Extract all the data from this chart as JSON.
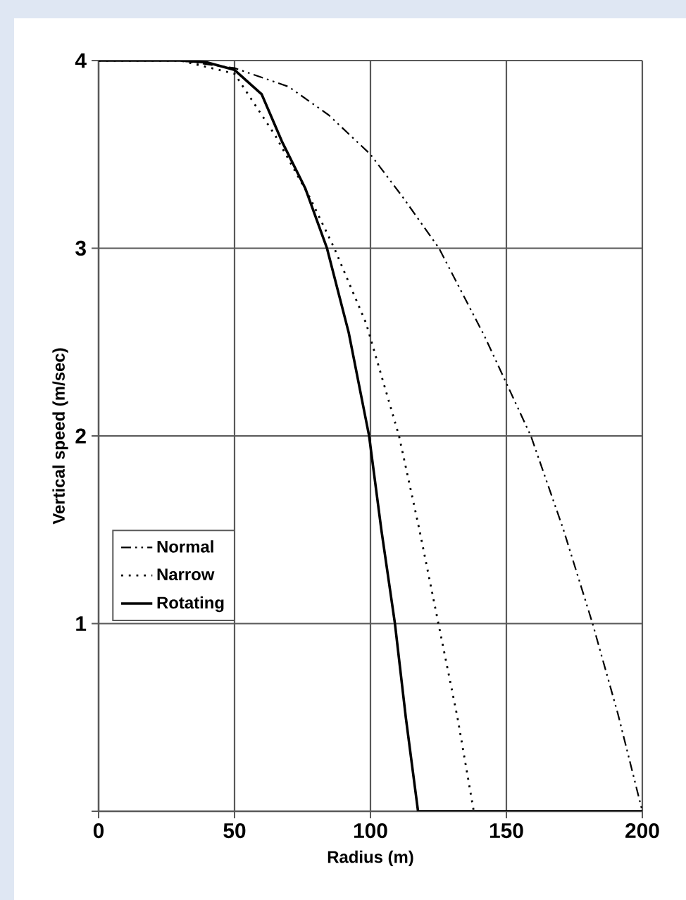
{
  "chart_data": {
    "type": "line",
    "xlabel": "Radius (m)",
    "ylabel": "Vertical speed (m/sec)",
    "xlim": [
      0,
      200
    ],
    "ylim": [
      0,
      4
    ],
    "xticks": [
      0,
      50,
      100,
      150,
      200
    ],
    "yticks": [
      {
        "value": 0,
        "label": null
      },
      1,
      2,
      3,
      4
    ],
    "grid": true,
    "legend": "left",
    "marker": "none",
    "series": [
      {
        "name": "Normal",
        "color": "#000000",
        "line_style": "dashed",
        "x": [
          0,
          30,
          50,
          70,
          84.6,
          100,
          112,
          125.2,
          142,
          159,
          171,
          181.7,
          191,
          200
        ],
        "values": [
          4,
          4,
          3.96,
          3.86,
          3.71,
          3.5,
          3.27,
          3,
          2.53,
          2,
          1.5,
          1,
          0.52,
          0
        ]
      },
      {
        "name": "Narrow",
        "color": "#000000",
        "line_style": "dotted",
        "x": [
          0,
          30,
          50,
          65,
          77.7,
          86.7,
          98.4,
          110.5,
          118,
          125,
          132,
          138
        ],
        "values": [
          4,
          4,
          3.93,
          3.6,
          3.27,
          3,
          2.6,
          2,
          1.5,
          1,
          0.5,
          0
        ]
      },
      {
        "name": "Rotating",
        "color": "#000000",
        "line_style": "solid",
        "x": [
          0,
          30,
          40,
          50,
          60,
          67.4,
          76,
          84,
          92,
          99.5,
          104,
          109,
          113,
          117.5,
          200
        ],
        "values": [
          4,
          4,
          3.99,
          3.95,
          3.82,
          3.57,
          3.32,
          3,
          2.55,
          2,
          1.5,
          1,
          0.5,
          0,
          0
        ]
      }
    ]
  }
}
